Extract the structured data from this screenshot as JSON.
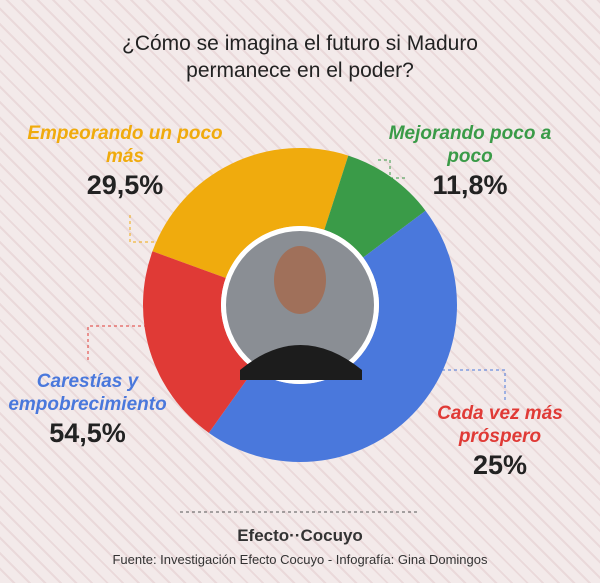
{
  "chart_data": {
    "type": "donut",
    "title": "¿Cómo se imagina el futuro si Maduro permanece en el poder?",
    "categories": [
      "Empeorando un poco más",
      "Mejorando poco a poco",
      "Carestías y empobrecimiento",
      "Cada vez más próspero"
    ],
    "values": [
      29.5,
      11.8,
      54.5,
      25
    ],
    "value_labels": [
      "29,5%",
      "11,8%",
      "54,5%",
      "25%"
    ],
    "colors": [
      "#f0ab0d",
      "#3a9b48",
      "#4a78dc",
      "#e03a36"
    ],
    "brand": "Efecto··Cocuyo",
    "source": "Fuente: Investigación Efecto Cocuyo - Infografía: Gina Domingos"
  }
}
